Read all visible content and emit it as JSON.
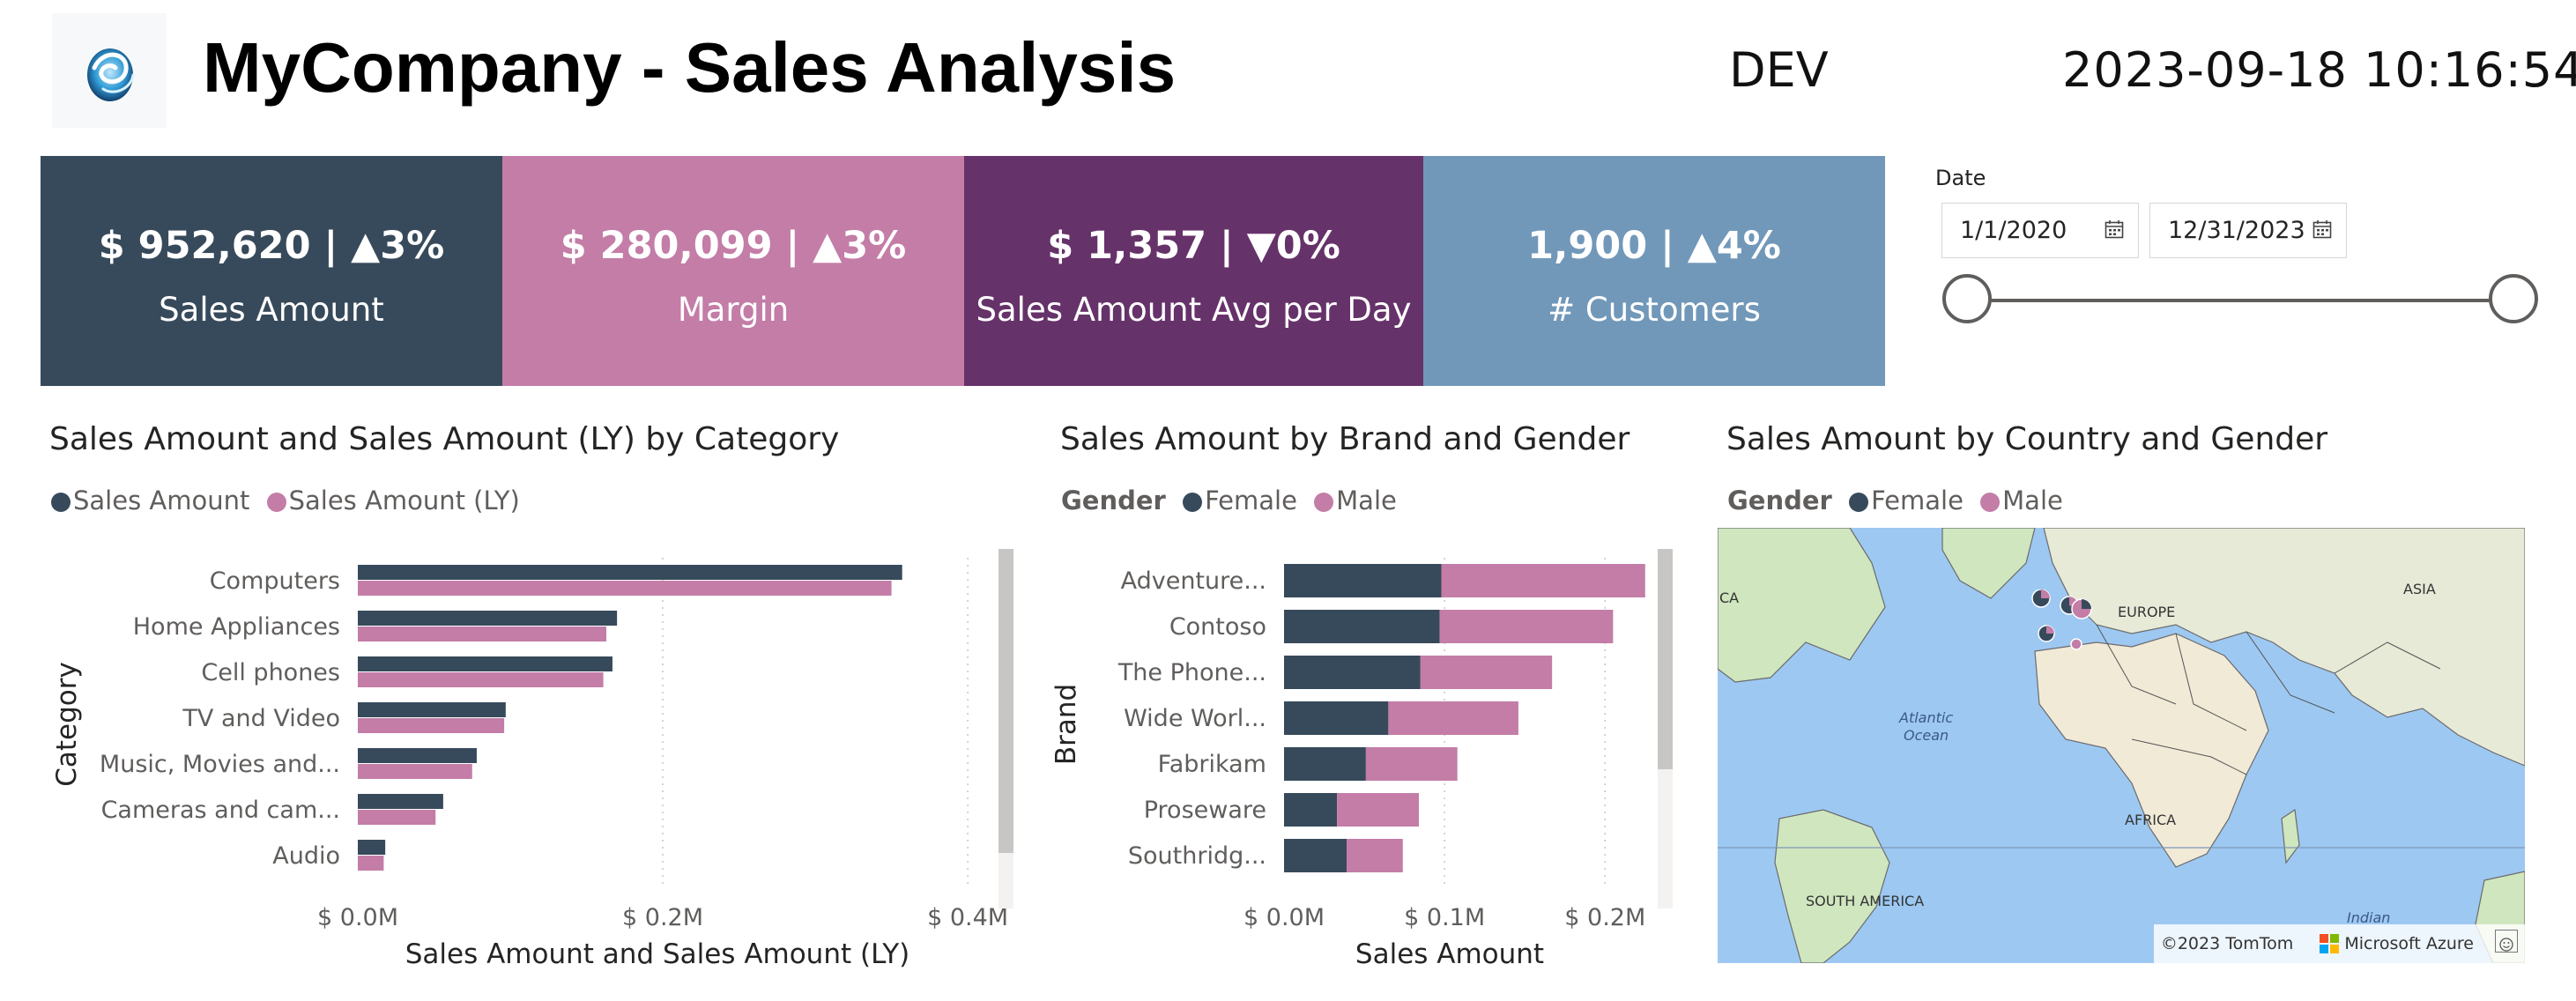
{
  "header": {
    "title": "MyCompany - Sales Analysis",
    "environment": "DEV",
    "timestamp": "2023-09-18 10:16:54",
    "logo_icon": "company-swirl-logo"
  },
  "kpis": [
    {
      "value": "$ 952,620 | ▲3%",
      "label": "Sales Amount",
      "color": "#374a5b"
    },
    {
      "value": "$ 280,099 | ▲3%",
      "label": "Margin",
      "color": "#c37da7"
    },
    {
      "value": "$ 1,357 | ▼0%",
      "label": "Sales Amount Avg per Day",
      "color": "#66326a"
    },
    {
      "value": "1,900 | ▲4%",
      "label": "# Customers",
      "color": "#7198b9"
    }
  ],
  "date_slicer": {
    "label": "Date",
    "start": "1/1/2020",
    "end": "12/31/2023",
    "calendar_icon": "calendar-icon",
    "range_start_fraction": 0,
    "range_end_fraction": 1
  },
  "colors": {
    "primary": "#374a5b",
    "secondary": "#c37da7"
  },
  "category_chart": {
    "title": "Sales Amount and Sales Amount (LY) by Category",
    "legend": [
      "Sales Amount",
      "Sales Amount (LY)"
    ]
  },
  "brand_chart": {
    "title": "Sales Amount by Brand and Gender",
    "legend_title": "Gender",
    "legend": [
      "Female",
      "Male"
    ]
  },
  "map_visual": {
    "title": "Sales Amount by Country and Gender",
    "legend_title": "Gender",
    "legend": [
      "Female",
      "Male"
    ],
    "labels": {
      "ca": "CA",
      "asia": "ASIA",
      "europe": "EUROPE",
      "atlantic": "Atlantic\nOcean",
      "africa": "AFRICA",
      "south_america": "SOUTH AMERICA",
      "indian": "Indian"
    },
    "attribution": "©2023 TomTom",
    "provider": "Microsoft Azure",
    "feedback_icon": "smiley-feedback-icon"
  },
  "chart_data": [
    {
      "type": "bar",
      "title": "Sales Amount and Sales Amount (LY) by Category",
      "xlabel": "Sales Amount and Sales Amount (LY)",
      "ylabel": "Category",
      "categories": [
        "Computers",
        "Home Appliances",
        "Cell phones",
        "TV and Video",
        "Music, Movies and...",
        "Cameras and cam...",
        "Audio"
      ],
      "series": [
        {
          "name": "Sales Amount",
          "values": [
            0.357,
            0.17,
            0.167,
            0.097,
            0.078,
            0.056,
            0.018
          ]
        },
        {
          "name": "Sales Amount (LY)",
          "values": [
            0.35,
            0.163,
            0.161,
            0.096,
            0.075,
            0.051,
            0.017
          ]
        }
      ],
      "xlim": [
        0,
        0.43
      ],
      "xticks": [
        0,
        0.2,
        0.4
      ],
      "xtick_labels": [
        "$ 0.0M",
        "$ 0.2M",
        "$ 0.4M"
      ],
      "legend_position": "top-left",
      "grid": true
    },
    {
      "type": "bar",
      "stacked": true,
      "title": "Sales Amount by Brand and Gender",
      "xlabel": "Sales Amount",
      "ylabel": "Brand",
      "categories": [
        "Adventure...",
        "Contoso",
        "The Phone...",
        "Wide Worl...",
        "Fabrikam",
        "Proseware",
        "Southridg..."
      ],
      "series": [
        {
          "name": "Female",
          "values": [
            0.098,
            0.097,
            0.085,
            0.065,
            0.051,
            0.033,
            0.039
          ]
        },
        {
          "name": "Male",
          "values": [
            0.127,
            0.108,
            0.082,
            0.081,
            0.057,
            0.051,
            0.035
          ]
        }
      ],
      "xlim": [
        0,
        0.24
      ],
      "xticks": [
        0,
        0.1,
        0.2
      ],
      "xtick_labels": [
        "$ 0.0M",
        "$ 0.1M",
        "$ 0.2M"
      ],
      "legend_position": "top-left",
      "grid": true
    }
  ]
}
